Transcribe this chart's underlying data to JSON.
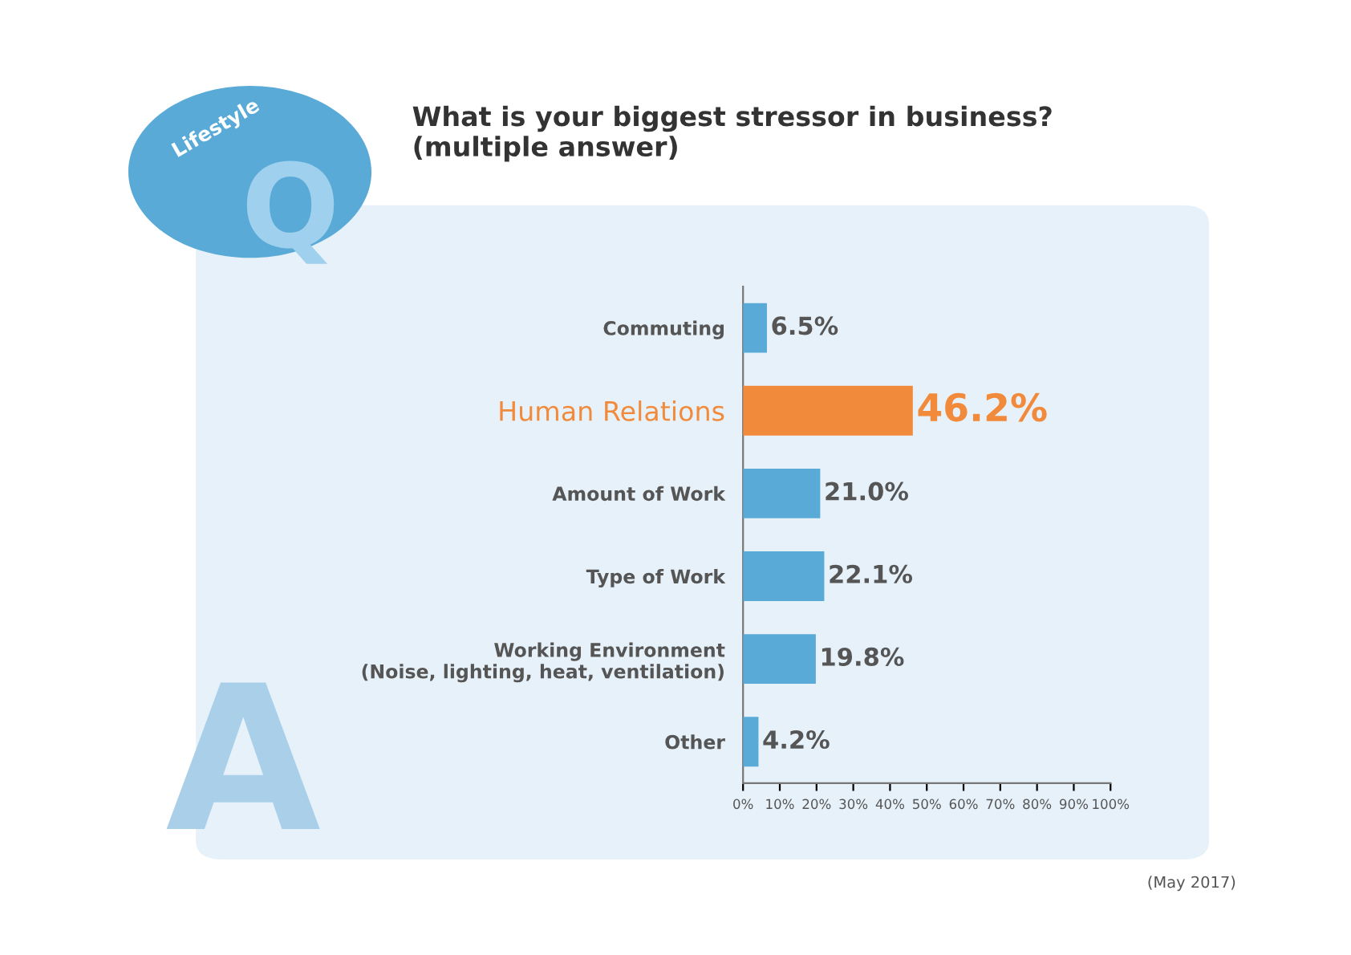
{
  "chart_data": {
    "type": "bar",
    "orientation": "horizontal",
    "title": "What is your biggest stressor in business?\n(multiple answer)",
    "categories": [
      "Commuting",
      "Human Relations",
      "Amount of Work",
      "Type of Work",
      "Working Environment\n(Noise, lighting, heat, ventilation)",
      "Other"
    ],
    "values": [
      6.5,
      46.2,
      21.0,
      22.1,
      19.8,
      4.2
    ],
    "colors": [
      "#5aaad8",
      "#f28a3c",
      "#5aaad8",
      "#5aaad8",
      "#5aaad8",
      "#5aaad8"
    ],
    "value_labels": [
      "6.5%",
      "46.2%",
      "21.0%",
      "22.1%",
      "19.8%",
      "4.2%"
    ],
    "xlim": [
      0,
      100
    ],
    "xticks": [
      {
        "value": 0,
        "label": "0%"
      },
      {
        "value": 10,
        "label": "10%"
      },
      {
        "value": 20,
        "label": "20%"
      },
      {
        "value": 30,
        "label": "30%"
      },
      {
        "value": 40,
        "label": "40%"
      },
      {
        "value": 50,
        "label": "50%"
      },
      {
        "value": 60,
        "label": "60%"
      },
      {
        "value": 70,
        "label": "70%"
      },
      {
        "value": 80,
        "label": "80%"
      },
      {
        "value": 90,
        "label": "90%"
      },
      {
        "value": 100,
        "label": "100%"
      }
    ],
    "grid": false,
    "legend": false,
    "annotations": [
      "Q",
      "Lifestyle",
      "A",
      "(May 2017)"
    ]
  }
}
